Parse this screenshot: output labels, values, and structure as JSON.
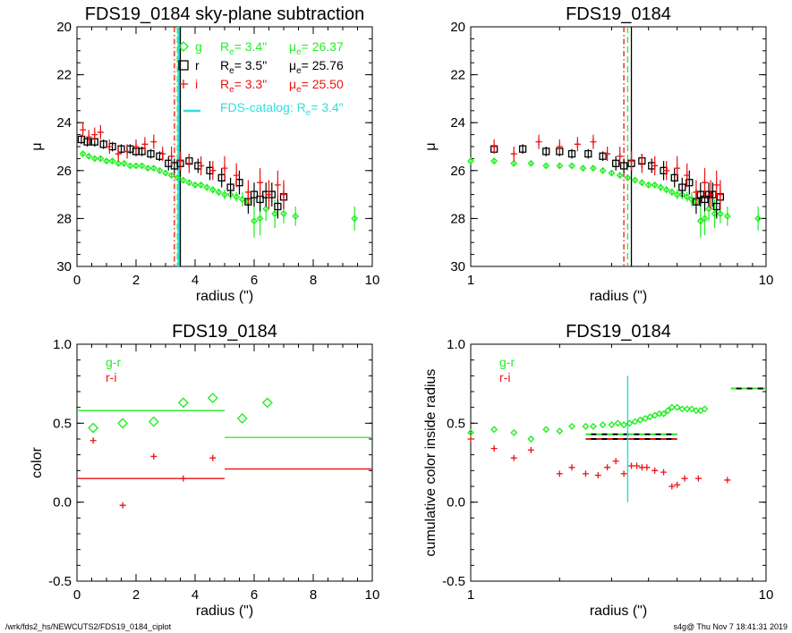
{
  "footer": {
    "path": "/wrk/fds2_hs/NEWCUTS2/FDS19_0184_ciplot",
    "stamp": "s4g@  Thu Nov  7 18:41:31 2019"
  },
  "colors": {
    "g": "#22ee22",
    "r": "#000000",
    "i": "#ee1111",
    "catalog": "#33dddd",
    "gr": "#22ee22",
    "ri": "#ee1111"
  },
  "chart_data": [
    {
      "id": "p1",
      "type": "scatter",
      "title": "FDS19_0184 sky-plane subtraction",
      "xlabel": "radius (\")",
      "ylabel": "μ",
      "xlim": [
        0,
        10
      ],
      "ylim": [
        30,
        20
      ],
      "xscale": "linear",
      "xticks": [
        "0",
        "2",
        "4",
        "6",
        "8",
        "10"
      ],
      "yticks": [
        "20",
        "22",
        "24",
        "26",
        "28",
        "30"
      ],
      "legend": [
        {
          "band": "g",
          "label_re": "R",
          "sub": "e",
          "re_val": "=   3.4\"",
          "mu_label": "μ",
          "mu_sub": "e",
          "mu_val": "= 26.37",
          "color": "#22ee22",
          "marker": "diamond"
        },
        {
          "band": "r",
          "label_re": "R",
          "sub": "e",
          "re_val": "=   3.5\"",
          "mu_label": "μ",
          "mu_sub": "e",
          "mu_val": "= 25.76",
          "color": "#000000",
          "marker": "square"
        },
        {
          "band": "i",
          "label_re": "R",
          "sub": "e",
          "re_val": "=   3.3\"",
          "mu_label": "μ",
          "mu_sub": "e",
          "mu_val": "= 25.50",
          "color": "#ee1111",
          "marker": "plus"
        }
      ],
      "catalog_label": "FDS-catalog: R",
      "catalog_sub": "e",
      "catalog_val": "=   3.4\"",
      "vlines": [
        {
          "x": 3.3,
          "color": "#ee1111",
          "style": "dashdot"
        },
        {
          "x": 3.4,
          "color": "#22ee22",
          "style": "dash"
        },
        {
          "x": 3.45,
          "color": "#33dddd",
          "style": "thick"
        },
        {
          "x": 3.5,
          "color": "#000000",
          "style": "solid"
        }
      ],
      "series": [
        {
          "name": "g",
          "marker": "diamond",
          "color": "#22ee22",
          "x": [
            0.2,
            0.4,
            0.6,
            0.8,
            1.0,
            1.2,
            1.4,
            1.6,
            1.8,
            2.0,
            2.2,
            2.4,
            2.6,
            2.8,
            3.0,
            3.2,
            3.4,
            3.6,
            3.8,
            4.0,
            4.2,
            4.4,
            4.6,
            4.8,
            5.0,
            5.2,
            5.4,
            5.6,
            5.8,
            6.0,
            6.2,
            6.4,
            6.7,
            7.0,
            7.4,
            9.4
          ],
          "y": [
            25.3,
            25.4,
            25.5,
            25.5,
            25.6,
            25.6,
            25.7,
            25.7,
            25.8,
            25.8,
            25.8,
            25.9,
            25.9,
            26.0,
            26.1,
            26.2,
            26.3,
            26.4,
            26.5,
            26.6,
            26.6,
            26.7,
            26.8,
            26.9,
            27.0,
            27.0,
            27.1,
            27.2,
            27.3,
            28.1,
            28.0,
            27.6,
            27.8,
            27.8,
            27.9,
            28.0
          ],
          "err": [
            0.1,
            0.1,
            0.1,
            0.1,
            0.1,
            0.1,
            0.1,
            0.1,
            0.1,
            0.1,
            0.1,
            0.1,
            0.1,
            0.1,
            0.1,
            0.1,
            0.1,
            0.1,
            0.1,
            0.1,
            0.1,
            0.15,
            0.15,
            0.15,
            0.2,
            0.2,
            0.2,
            0.3,
            0.3,
            0.7,
            0.7,
            0.5,
            0.6,
            0.4,
            0.4,
            0.5
          ]
        },
        {
          "name": "r",
          "marker": "square",
          "color": "#000000",
          "x": [
            0.15,
            0.35,
            0.6,
            0.9,
            1.2,
            1.5,
            1.8,
            2.0,
            2.2,
            2.5,
            2.8,
            3.1,
            3.3,
            3.5,
            3.8,
            4.1,
            4.5,
            4.9,
            5.2,
            5.5,
            5.8,
            6.0,
            6.2,
            6.4,
            6.6,
            6.8,
            7.0
          ],
          "y": [
            24.7,
            24.8,
            24.8,
            24.9,
            25.0,
            25.1,
            25.1,
            25.2,
            25.2,
            25.3,
            25.4,
            25.7,
            25.8,
            25.7,
            25.6,
            25.8,
            26.0,
            26.3,
            26.7,
            26.5,
            27.3,
            27.0,
            27.2,
            27.0,
            27.0,
            27.5,
            27.1
          ],
          "err": [
            0.2,
            0.2,
            0.2,
            0.2,
            0.2,
            0.2,
            0.2,
            0.2,
            0.2,
            0.2,
            0.2,
            0.3,
            0.3,
            0.3,
            0.3,
            0.3,
            0.4,
            0.4,
            0.4,
            0.5,
            0.5,
            0.5,
            0.5,
            0.5,
            0.5,
            0.5,
            0.5
          ]
        },
        {
          "name": "i",
          "marker": "plus",
          "color": "#ee1111",
          "x": [
            0.2,
            0.4,
            0.6,
            0.8,
            1.1,
            1.4,
            1.7,
            2.0,
            2.3,
            2.6,
            2.9,
            3.2,
            3.5,
            3.8,
            4.2,
            4.6,
            5.0,
            5.4,
            5.8,
            6.2,
            6.5,
            6.8,
            7.0
          ],
          "y": [
            24.3,
            24.6,
            24.5,
            24.4,
            25.0,
            25.3,
            25.2,
            25.0,
            24.9,
            24.8,
            25.3,
            25.4,
            25.6,
            25.7,
            25.8,
            26.0,
            25.9,
            26.2,
            26.9,
            26.5,
            27.0,
            26.6,
            27.0
          ],
          "err": [
            0.3,
            0.3,
            0.3,
            0.3,
            0.3,
            0.3,
            0.3,
            0.3,
            0.3,
            0.3,
            0.3,
            0.4,
            0.4,
            0.4,
            0.4,
            0.4,
            0.5,
            0.5,
            0.5,
            0.6,
            0.6,
            0.6,
            0.6
          ]
        }
      ]
    },
    {
      "id": "p2",
      "type": "scatter",
      "title": "FDS19_0184",
      "xlabel": "radius (\")",
      "ylabel": "μ",
      "xlim": [
        1,
        10
      ],
      "ylim": [
        30,
        20
      ],
      "xscale": "log",
      "xticks": [
        "1",
        "10"
      ],
      "yticks": [
        "20",
        "22",
        "24",
        "26",
        "28",
        "30"
      ],
      "vlines": [
        {
          "x": 3.3,
          "color": "#ee1111",
          "style": "dashdot"
        },
        {
          "x": 3.4,
          "color": "#22ee22",
          "style": "dash"
        },
        {
          "x": 3.5,
          "color": "#000000",
          "style": "solid"
        }
      ],
      "series": [
        {
          "name": "g",
          "marker": "diamond",
          "color": "#22ee22",
          "x": [
            1.0,
            1.2,
            1.4,
            1.6,
            1.8,
            2.0,
            2.2,
            2.4,
            2.6,
            2.8,
            3.0,
            3.2,
            3.4,
            3.6,
            3.8,
            4.0,
            4.2,
            4.4,
            4.6,
            4.8,
            5.0,
            5.2,
            5.4,
            5.6,
            5.8,
            6.0,
            6.2,
            6.4,
            6.7,
            7.0,
            7.4,
            9.4
          ],
          "y": [
            25.6,
            25.6,
            25.7,
            25.7,
            25.8,
            25.8,
            25.8,
            25.9,
            25.9,
            26.0,
            26.1,
            26.2,
            26.3,
            26.4,
            26.5,
            26.6,
            26.6,
            26.7,
            26.8,
            26.9,
            27.0,
            27.0,
            27.1,
            27.2,
            27.3,
            28.1,
            28.0,
            27.6,
            27.8,
            27.8,
            27.9,
            28.0
          ],
          "err": [
            0.1,
            0.1,
            0.1,
            0.1,
            0.1,
            0.1,
            0.1,
            0.1,
            0.1,
            0.1,
            0.1,
            0.1,
            0.1,
            0.1,
            0.1,
            0.1,
            0.1,
            0.15,
            0.15,
            0.15,
            0.2,
            0.2,
            0.2,
            0.3,
            0.3,
            0.7,
            0.7,
            0.5,
            0.6,
            0.4,
            0.4,
            0.5
          ]
        },
        {
          "name": "r",
          "marker": "square",
          "color": "#000000",
          "x": [
            1.2,
            1.5,
            1.8,
            2.0,
            2.2,
            2.5,
            2.8,
            3.1,
            3.3,
            3.5,
            3.8,
            4.1,
            4.5,
            4.9,
            5.2,
            5.5,
            5.8,
            6.0,
            6.2,
            6.4,
            6.6,
            6.8,
            7.0
          ],
          "y": [
            25.1,
            25.1,
            25.2,
            25.2,
            25.3,
            25.3,
            25.4,
            25.7,
            25.8,
            25.7,
            25.6,
            25.8,
            26.0,
            26.3,
            26.7,
            26.5,
            27.3,
            27.0,
            27.2,
            27.0,
            27.0,
            27.5,
            27.1
          ],
          "err": [
            0.2,
            0.2,
            0.2,
            0.2,
            0.2,
            0.2,
            0.2,
            0.3,
            0.3,
            0.3,
            0.3,
            0.3,
            0.4,
            0.4,
            0.4,
            0.5,
            0.5,
            0.5,
            0.5,
            0.5,
            0.5,
            0.5,
            0.5
          ]
        },
        {
          "name": "i",
          "marker": "plus",
          "color": "#ee1111",
          "x": [
            1.2,
            1.4,
            1.7,
            2.0,
            2.3,
            2.6,
            2.9,
            3.2,
            3.5,
            3.8,
            4.2,
            4.6,
            5.0,
            5.4,
            5.8,
            6.2,
            6.5,
            6.8,
            7.0
          ],
          "y": [
            25.0,
            25.3,
            24.8,
            25.0,
            24.9,
            24.8,
            25.3,
            25.4,
            25.6,
            25.7,
            25.8,
            26.0,
            25.9,
            26.2,
            26.9,
            26.5,
            27.0,
            26.6,
            27.0
          ],
          "err": [
            0.3,
            0.3,
            0.3,
            0.3,
            0.3,
            0.3,
            0.3,
            0.4,
            0.4,
            0.4,
            0.4,
            0.4,
            0.5,
            0.5,
            0.5,
            0.6,
            0.6,
            0.6,
            0.6
          ]
        }
      ]
    },
    {
      "id": "p3",
      "type": "scatter",
      "title": "FDS19_0184",
      "xlabel": "radius (\")",
      "ylabel": "color",
      "xlim": [
        0,
        10
      ],
      "ylim": [
        -0.5,
        1.0
      ],
      "xscale": "linear",
      "xticks": [
        "0",
        "2",
        "4",
        "6",
        "8",
        "10"
      ],
      "yticks": [
        "-0.5",
        "0.0",
        "0.5",
        "1.0"
      ],
      "legend_labels": [
        {
          "text": "g-r",
          "color": "#22ee22"
        },
        {
          "text": "r-i",
          "color": "#ee1111"
        }
      ],
      "hlines": [
        {
          "x0": 0,
          "x1": 5.0,
          "y": 0.58,
          "color": "#22ee22"
        },
        {
          "x0": 5.0,
          "x1": 10,
          "y": 0.41,
          "color": "#22ee22"
        },
        {
          "x0": 0,
          "x1": 5.0,
          "y": 0.15,
          "color": "#ee1111"
        },
        {
          "x0": 5.0,
          "x1": 10,
          "y": 0.21,
          "color": "#ee1111"
        }
      ],
      "series": [
        {
          "name": "g-r",
          "marker": "diamond",
          "color": "#22ee22",
          "x": [
            0.55,
            1.55,
            2.6,
            3.6,
            4.6,
            5.6,
            6.45
          ],
          "y": [
            0.47,
            0.5,
            0.51,
            0.63,
            0.66,
            0.53,
            0.63
          ]
        },
        {
          "name": "r-i",
          "marker": "plus",
          "color": "#ee1111",
          "x": [
            0.55,
            1.55,
            2.6,
            3.6,
            4.6
          ],
          "y": [
            0.39,
            -0.02,
            0.29,
            0.15,
            0.28
          ]
        }
      ]
    },
    {
      "id": "p4",
      "type": "scatter",
      "title": "FDS19_0184",
      "xlabel": "radius (\")",
      "ylabel": "cumulative color inside radius",
      "xlim": [
        1,
        10
      ],
      "ylim": [
        -0.5,
        1.0
      ],
      "xscale": "log",
      "xticks": [
        "1",
        "10"
      ],
      "yticks": [
        "-0.5",
        "0.0",
        "0.5",
        "1.0"
      ],
      "legend_labels": [
        {
          "text": "g-r",
          "color": "#22ee22"
        },
        {
          "text": "r-i",
          "color": "#ee1111"
        }
      ],
      "vline_catalog": {
        "x": 3.4,
        "y0": 0.0,
        "y1": 0.8,
        "color": "#33dddd"
      },
      "segments": [
        {
          "x0": 2.45,
          "x1": 5.0,
          "y": 0.43,
          "color": "#22ee22",
          "dashed": true
        },
        {
          "x0": 2.45,
          "x1": 5.0,
          "y": 0.4,
          "color": "#ee1111",
          "dashed": true
        },
        {
          "x0": 7.6,
          "x1": 10,
          "y": 0.72,
          "color": "#22ee22",
          "dashed": true
        },
        {
          "x0": 7.6,
          "x1": 10,
          "y": 0.72,
          "color": "#000000",
          "dashed": true
        }
      ],
      "series": [
        {
          "name": "g-r",
          "marker": "diamond",
          "color": "#22ee22",
          "x": [
            1.0,
            1.2,
            1.4,
            1.6,
            1.8,
            2.0,
            2.2,
            2.45,
            2.6,
            2.8,
            3.0,
            3.15,
            3.3,
            3.45,
            3.6,
            3.75,
            3.9,
            4.05,
            4.2,
            4.35,
            4.5,
            4.65,
            4.8,
            5.0,
            5.2,
            5.4,
            5.6,
            5.8,
            6.0,
            6.2
          ],
          "y": [
            0.44,
            0.46,
            0.44,
            0.4,
            0.46,
            0.45,
            0.48,
            0.48,
            0.48,
            0.49,
            0.49,
            0.5,
            0.49,
            0.5,
            0.51,
            0.52,
            0.53,
            0.54,
            0.55,
            0.56,
            0.56,
            0.58,
            0.6,
            0.6,
            0.59,
            0.59,
            0.59,
            0.58,
            0.58,
            0.59
          ]
        },
        {
          "name": "r-i",
          "marker": "plus",
          "color": "#ee1111",
          "x": [
            1.0,
            1.2,
            1.4,
            1.6,
            2.0,
            2.2,
            2.45,
            2.7,
            2.9,
            3.1,
            3.3,
            3.5,
            3.65,
            3.8,
            3.95,
            4.2,
            4.5,
            4.8,
            5.0,
            5.3,
            5.9,
            7.4
          ],
          "y": [
            0.4,
            0.34,
            0.28,
            0.33,
            0.18,
            0.22,
            0.18,
            0.17,
            0.22,
            0.26,
            0.18,
            0.23,
            0.23,
            0.22,
            0.22,
            0.2,
            0.19,
            0.1,
            0.11,
            0.15,
            0.15,
            0.14
          ]
        }
      ]
    }
  ]
}
